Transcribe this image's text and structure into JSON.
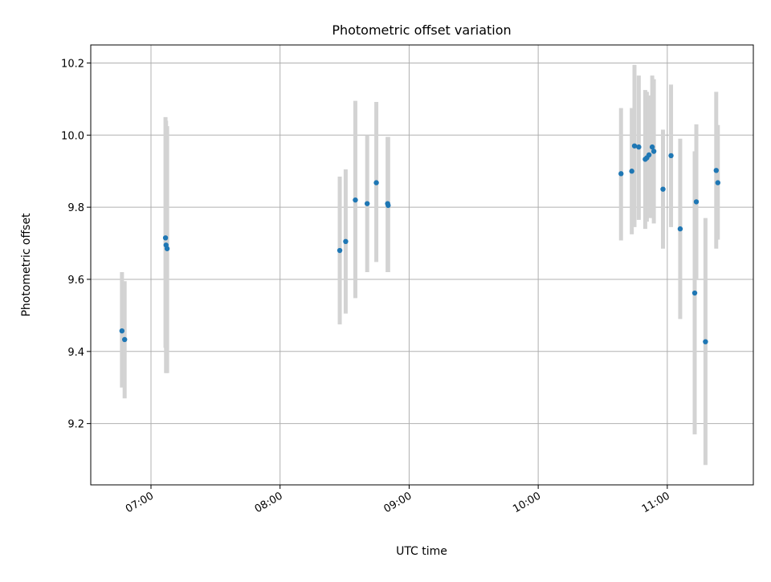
{
  "chart_data": {
    "type": "scatter",
    "title": "Photometric offset variation",
    "xlabel": "UTC time",
    "ylabel": "Photometric offset",
    "x_ticks": [
      "07:00",
      "08:00",
      "09:00",
      "10:00",
      "11:00"
    ],
    "y_ticks": [
      "9.2",
      "9.4",
      "9.6",
      "9.8",
      "10.0",
      "10.2"
    ],
    "xlim": [
      "06:32",
      "11:40"
    ],
    "ylim": [
      9.03,
      10.25
    ],
    "grid": true,
    "colors": {
      "point": "#1f77b4",
      "error_bar": "#d3d3d3",
      "grid": "#b0b0b0"
    },
    "points": [
      {
        "t": "06:46:30",
        "y": 9.457,
        "lo": 9.3,
        "hi": 9.62
      },
      {
        "t": "06:47:45",
        "y": 9.433,
        "lo": 9.27,
        "hi": 9.595
      },
      {
        "t": "07:06:45",
        "y": 9.715,
        "lo": 9.41,
        "hi": 10.05
      },
      {
        "t": "07:07:00",
        "y": 9.695,
        "lo": 9.34,
        "hi": 10.04
      },
      {
        "t": "07:07:30",
        "y": 9.685,
        "lo": 9.34,
        "hi": 10.025
      },
      {
        "t": "08:27:45",
        "y": 9.68,
        "lo": 9.475,
        "hi": 9.885
      },
      {
        "t": "08:30:30",
        "y": 9.705,
        "lo": 9.505,
        "hi": 9.905
      },
      {
        "t": "08:35:00",
        "y": 9.82,
        "lo": 9.548,
        "hi": 10.095
      },
      {
        "t": "08:40:30",
        "y": 9.81,
        "lo": 9.62,
        "hi": 10.0
      },
      {
        "t": "08:44:45",
        "y": 9.868,
        "lo": 9.648,
        "hi": 10.092
      },
      {
        "t": "08:50:00",
        "y": 9.81,
        "lo": 9.62,
        "hi": 9.995
      },
      {
        "t": "08:50:15",
        "y": 9.805,
        "lo": 9.62,
        "hi": 9.995
      },
      {
        "t": "10:38:30",
        "y": 9.893,
        "lo": 9.708,
        "hi": 10.075
      },
      {
        "t": "10:43:30",
        "y": 9.9,
        "lo": 9.725,
        "hi": 10.075
      },
      {
        "t": "10:44:45",
        "y": 9.97,
        "lo": 9.745,
        "hi": 10.195
      },
      {
        "t": "10:46:45",
        "y": 9.967,
        "lo": 9.765,
        "hi": 10.165
      },
      {
        "t": "10:49:45",
        "y": 9.933,
        "lo": 9.74,
        "hi": 10.125
      },
      {
        "t": "10:50:30",
        "y": 9.937,
        "lo": 9.76,
        "hi": 10.12
      },
      {
        "t": "10:51:30",
        "y": 9.945,
        "lo": 9.77,
        "hi": 10.11
      },
      {
        "t": "10:53:00",
        "y": 9.967,
        "lo": 9.77,
        "hi": 10.165
      },
      {
        "t": "10:53:45",
        "y": 9.955,
        "lo": 9.755,
        "hi": 10.155
      },
      {
        "t": "10:58:00",
        "y": 9.85,
        "lo": 9.685,
        "hi": 10.015
      },
      {
        "t": "11:01:45",
        "y": 9.943,
        "lo": 9.745,
        "hi": 10.14
      },
      {
        "t": "11:06:00",
        "y": 9.74,
        "lo": 9.49,
        "hi": 9.99
      },
      {
        "t": "11:12:45",
        "y": 9.562,
        "lo": 9.17,
        "hi": 9.955
      },
      {
        "t": "11:13:30",
        "y": 9.815,
        "lo": 9.6,
        "hi": 10.03
      },
      {
        "t": "11:17:45",
        "y": 9.427,
        "lo": 9.085,
        "hi": 9.77
      },
      {
        "t": "11:22:45",
        "y": 9.902,
        "lo": 9.685,
        "hi": 10.12
      },
      {
        "t": "11:23:30",
        "y": 9.868,
        "lo": 9.71,
        "hi": 10.028
      }
    ]
  }
}
